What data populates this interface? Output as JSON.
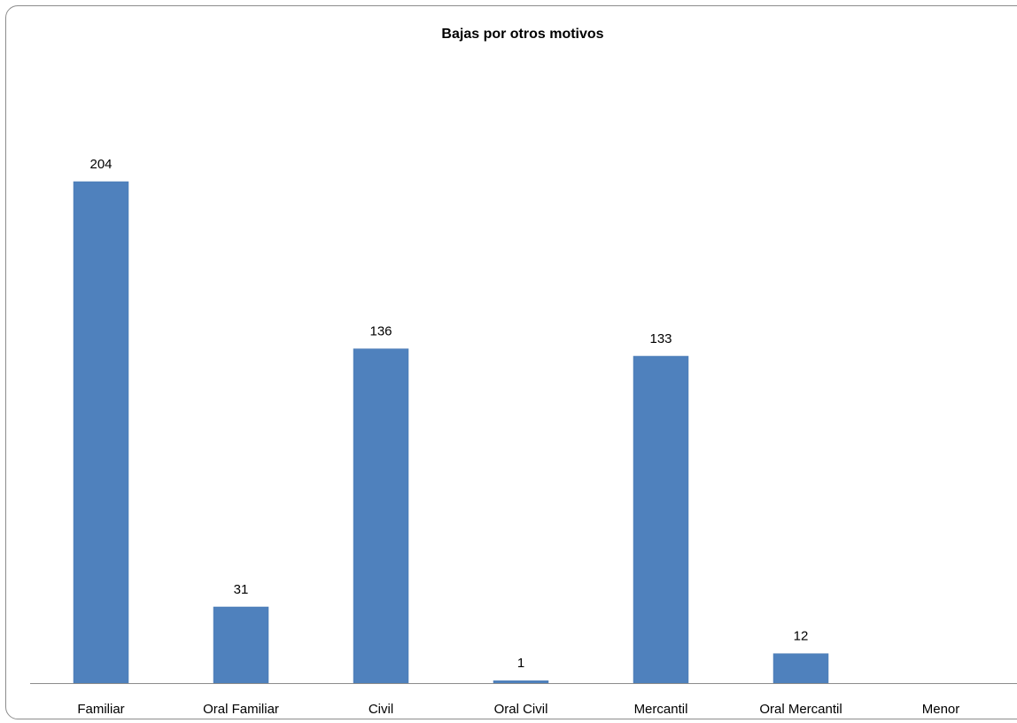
{
  "chart_data": {
    "type": "bar",
    "title": "Bajas por otros motivos",
    "xlabel": "",
    "ylabel": "",
    "categories": [
      "Familiar",
      "Oral Familiar",
      "Civil",
      "Oral Civil",
      "Mercantil",
      "Oral Mercantil",
      "Menor"
    ],
    "values": [
      204,
      31,
      136,
      1,
      133,
      12,
      0
    ],
    "data_labels": [
      "204",
      "31",
      "136",
      "1",
      "133",
      "12",
      ""
    ],
    "ylim": [
      0,
      204
    ],
    "grid": false,
    "legend": "none",
    "colors": {
      "bar": "#4f81bd",
      "bar_edge": "#4a7ab3",
      "axis": "#8c8c8c",
      "frame": "#8c8c8c"
    }
  }
}
